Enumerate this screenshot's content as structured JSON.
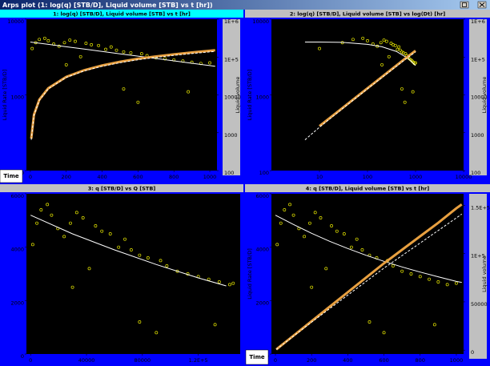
{
  "window": {
    "title": "Arps plot (1: log(q) [STB/D], Liquid volume [STB] vs t [hr])",
    "button": "Time"
  },
  "chart_data": [
    {
      "type": "line",
      "title": "1: log(q) [STB/D], Liquid volume [STB] vs t [hr]",
      "title_color": "#00ffff",
      "ylabel": "Liquid Rate [STB/D]",
      "y2label": "Liquid volume",
      "xscale": "linear",
      "yscale": "log",
      "y2scale": "log",
      "xlim": [
        -22,
        1040
      ],
      "xticks": [
        0,
        200,
        400,
        600,
        800,
        1000
      ],
      "ylim": [
        100,
        10000
      ],
      "yticks": [
        100,
        1000,
        10000
      ],
      "y2lim": [
        100,
        1000000
      ],
      "y2ticks": [
        100,
        1000,
        10000,
        {
          "value": 100000,
          "label": "1E+5"
        },
        {
          "value": 1000000,
          "label": "1E+6"
        }
      ],
      "series": [
        {
          "mode": "markers",
          "color": "#e8e800",
          "x": [
            10,
            30,
            50,
            80,
            100,
            130,
            160,
            190,
            220,
            250,
            280,
            310,
            340,
            380,
            420,
            450,
            480,
            520,
            560,
            600,
            620,
            650,
            700,
            750,
            800,
            850,
            900,
            950,
            1000,
            200,
            520,
            880
          ],
          "values": [
            4100,
            4900,
            5400,
            5600,
            5200,
            4700,
            4400,
            4900,
            5300,
            5100,
            3200,
            4800,
            4600,
            4500,
            4000,
            4300,
            3900,
            3700,
            3600,
            800,
            3500,
            3300,
            3100,
            3000,
            2900,
            2800,
            2700,
            2600,
            2650,
            2500,
            1200,
            1100
          ]
        },
        {
          "mode": "line",
          "color": "#ffffff",
          "x": [
            0,
            100,
            200,
            300,
            400,
            500,
            600,
            700,
            800,
            900,
            1000,
            1030
          ],
          "values": [
            5000,
            4650,
            4330,
            4030,
            3750,
            3490,
            3250,
            3030,
            2820,
            2620,
            2440,
            2390
          ]
        },
        {
          "mode": "thick",
          "color": "#e8a040",
          "axis": "y2",
          "x": [
            5,
            20,
            50,
            100,
            200,
            300,
            400,
            500,
            600,
            700,
            800,
            900,
            1000,
            1030
          ],
          "values": [
            700,
            3000,
            7500,
            15000,
            30000,
            45000,
            60000,
            75000,
            90000,
            104000,
            118000,
            132000,
            147000,
            151000
          ]
        },
        {
          "mode": "dashed",
          "color": "#ffffff",
          "axis": "y2",
          "x": [
            5,
            20,
            50,
            100,
            200,
            300,
            400,
            500,
            600,
            700,
            800,
            900,
            1000,
            1030
          ],
          "values": [
            650,
            2900,
            7200,
            14500,
            29000,
            43000,
            57000,
            71000,
            85000,
            98000,
            111000,
            124000,
            137000,
            141000
          ]
        }
      ]
    },
    {
      "type": "line",
      "title": "2: log(q) [STB/D], Liquid volume [STB] vs log(Dt) [hr]",
      "title_color": "#c0c0c0",
      "ylabel": "Liquid Rate [STB/D]",
      "y2label": "Liquid volume",
      "xscale": "log",
      "yscale": "log",
      "y2scale": "log",
      "xlim": [
        1,
        10000
      ],
      "xticks": [
        10,
        100,
        1000,
        10000
      ],
      "ylim": [
        100,
        10000
      ],
      "yticks": [
        100,
        1000,
        10000
      ],
      "y2lim": [
        100,
        1000000
      ],
      "y2ticks": [
        100,
        1000,
        10000,
        {
          "value": 100000,
          "label": "1E+5"
        },
        {
          "value": 1000000,
          "label": "1E+6"
        }
      ],
      "series": [
        {
          "mode": "markers",
          "color": "#e8e800",
          "x": [
            10,
            30,
            50,
            80,
            100,
            130,
            160,
            190,
            220,
            250,
            280,
            310,
            340,
            380,
            420,
            450,
            480,
            520,
            560,
            600,
            620,
            650,
            700,
            750,
            800,
            850,
            900,
            950,
            1000,
            200,
            520,
            880
          ],
          "values": [
            4100,
            4900,
            5400,
            5600,
            5200,
            4700,
            4400,
            4900,
            5300,
            5100,
            3200,
            4800,
            4600,
            4500,
            4000,
            4300,
            3900,
            3700,
            3600,
            800,
            3500,
            3300,
            3100,
            3000,
            2900,
            2800,
            2700,
            2600,
            2650,
            2500,
            1200,
            1100
          ]
        },
        {
          "mode": "line",
          "color": "#ffffff",
          "x": [
            5,
            10,
            30,
            100,
            200,
            400,
            700,
            1000
          ],
          "values": [
            5000,
            4990,
            4950,
            4650,
            4330,
            3750,
            3030,
            2440
          ]
        },
        {
          "mode": "thick",
          "color": "#e8a040",
          "axis": "y2",
          "x": [
            10,
            30,
            100,
            300,
            600,
            1000
          ],
          "values": [
            1500,
            4500,
            15000,
            45000,
            90000,
            147000
          ]
        },
        {
          "mode": "dashed",
          "color": "#ffffff",
          "axis": "y2",
          "x": [
            5,
            10,
            30,
            100,
            300,
            600,
            1000
          ],
          "values": [
            650,
            1400,
            4300,
            14500,
            43000,
            85000,
            137000
          ]
        }
      ]
    },
    {
      "type": "line",
      "title": "3: q [STB/D] vs Q [STB]",
      "title_color": "#c0c0c0",
      "xscale": "linear",
      "yscale": "linear",
      "xlim": [
        -3000,
        150000
      ],
      "xticks": [
        0,
        40000,
        80000,
        {
          "value": 120000,
          "label": "1.2E+5"
        }
      ],
      "ylim": [
        0,
        6000
      ],
      "yticks": [
        0,
        2000,
        4000,
        6000
      ],
      "series": [
        {
          "mode": "markers",
          "color": "#e8e800",
          "x": [
            1500,
            4500,
            7500,
            12000,
            15000,
            19500,
            24000,
            28500,
            33000,
            37500,
            42000,
            46500,
            51000,
            57000,
            63000,
            67500,
            72000,
            78000,
            84000,
            90000,
            93000,
            97500,
            105000,
            112500,
            120000,
            127500,
            135000,
            142500,
            145000,
            30000,
            78000,
            132000
          ],
          "values": [
            4100,
            4900,
            5400,
            5600,
            5200,
            4700,
            4400,
            4900,
            5300,
            5100,
            3200,
            4800,
            4600,
            4500,
            4000,
            4300,
            3900,
            3700,
            3600,
            800,
            3500,
            3300,
            3100,
            3000,
            2900,
            2800,
            2700,
            2600,
            2650,
            2500,
            1200,
            1100
          ]
        },
        {
          "mode": "line",
          "color": "#ffffff",
          "x": [
            0,
            30000,
            60000,
            90000,
            120000,
            140000
          ],
          "values": [
            5200,
            4500,
            3900,
            3350,
            2850,
            2550
          ]
        }
      ]
    },
    {
      "type": "line",
      "title": "4: q [STB/D], Liquid volume [STB] vs t [hr]",
      "title_color": "#c0c0c0",
      "ylabel": "Liquid Rate [STB/D]",
      "y2label": "Liquid volume",
      "xscale": "linear",
      "yscale": "linear",
      "y2scale": "linear",
      "xlim": [
        -22,
        1040
      ],
      "xticks": [
        0,
        200,
        400,
        600,
        800,
        1000
      ],
      "ylim": [
        0,
        6000
      ],
      "yticks": [
        0,
        2000,
        4000,
        6000
      ],
      "y2lim": [
        -4000,
        162000
      ],
      "y2ticks": [
        0,
        50000,
        {
          "value": 100000,
          "label": "1E+5"
        },
        {
          "value": 150000,
          "label": "1.5E+5"
        }
      ],
      "series": [
        {
          "mode": "markers",
          "color": "#e8e800",
          "x": [
            10,
            30,
            50,
            80,
            100,
            130,
            160,
            190,
            220,
            250,
            280,
            310,
            340,
            380,
            420,
            450,
            480,
            520,
            560,
            600,
            620,
            650,
            700,
            750,
            800,
            850,
            900,
            950,
            1000,
            200,
            520,
            880
          ],
          "values": [
            4100,
            4900,
            5400,
            5600,
            5200,
            4700,
            4400,
            4900,
            5300,
            5100,
            3200,
            4800,
            4600,
            4500,
            4000,
            4300,
            3900,
            3700,
            3600,
            800,
            3500,
            3300,
            3100,
            3000,
            2900,
            2800,
            2700,
            2600,
            2650,
            2500,
            1200,
            1100
          ]
        },
        {
          "mode": "line",
          "color": "#ffffff",
          "x": [
            0,
            100,
            200,
            300,
            400,
            500,
            600,
            700,
            800,
            900,
            1000,
            1030
          ],
          "values": [
            5200,
            4850,
            4520,
            4220,
            3950,
            3700,
            3470,
            3260,
            3070,
            2890,
            2720,
            2680
          ]
        },
        {
          "mode": "thick",
          "color": "#e8a040",
          "axis": "y2",
          "x": [
            5,
            20,
            50,
            100,
            200,
            300,
            400,
            500,
            600,
            700,
            800,
            900,
            1000,
            1030
          ],
          "values": [
            700,
            3000,
            7500,
            15000,
            30000,
            45000,
            60000,
            75000,
            90000,
            104000,
            118000,
            132000,
            147000,
            151000
          ]
        },
        {
          "mode": "dashed",
          "color": "#ffffff",
          "axis": "y2",
          "x": [
            5,
            20,
            50,
            100,
            200,
            300,
            400,
            500,
            600,
            700,
            800,
            900,
            1000,
            1030
          ],
          "values": [
            650,
            2900,
            7200,
            14500,
            29000,
            43000,
            57000,
            71000,
            85000,
            98000,
            111000,
            124000,
            137000,
            141000
          ]
        }
      ]
    }
  ]
}
